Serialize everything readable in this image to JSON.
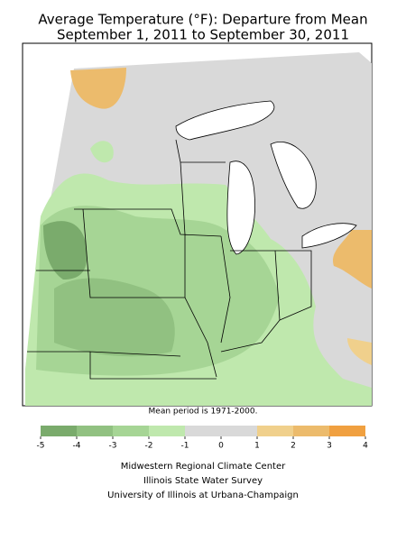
{
  "title": [
    "Average Temperature (°F): Departure from Mean",
    "September 1, 2011 to September 30, 2011"
  ],
  "note": "Mean period is 1971-2000.",
  "legend": {
    "ticks": [
      -5,
      -4,
      -3,
      -2,
      -1,
      0,
      1,
      2,
      3,
      4
    ],
    "colors": [
      "#7aab6c",
      "#91c181",
      "#a6d595",
      "#bfe8ad",
      "#d9d9d9",
      "#d9d9d9",
      "#f0d08c",
      "#ecbb6c",
      "#f0a040"
    ]
  },
  "credits": [
    "Midwestern Regional Climate Center",
    "Illinois State Water Survey",
    "University of Illinois at Urbana-Champaign"
  ]
}
